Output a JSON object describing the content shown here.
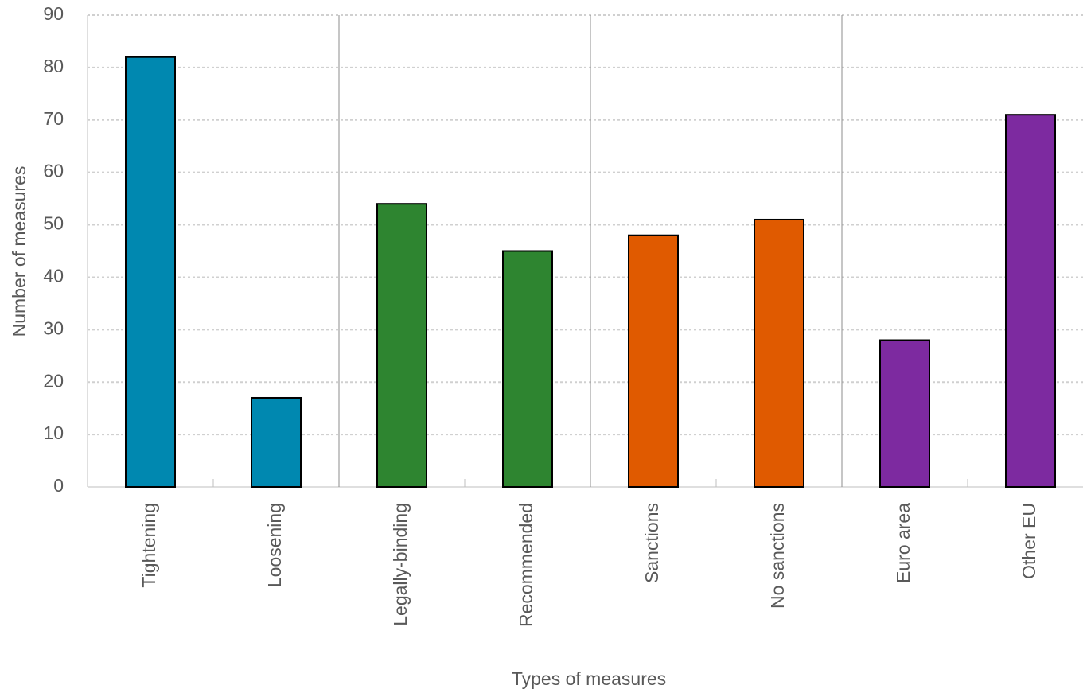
{
  "chart_data": {
    "type": "bar",
    "x_label": "Types of measures",
    "y_label": "Number of measures",
    "categories": [
      "Tightening",
      "Loosening",
      "Legally-binding",
      "Recommended",
      "Sanctions",
      "No sanctions",
      "Euro area",
      "Other EU"
    ],
    "values": [
      82,
      17,
      54,
      45,
      48,
      51,
      28,
      71
    ],
    "colors": [
      "#0088b0",
      "#0088b0",
      "#2e8530",
      "#2e8530",
      "#e05a00",
      "#e05a00",
      "#7d2aa0",
      "#7d2aa0"
    ],
    "ylim": [
      0,
      90
    ],
    "yticks": [
      0,
      10,
      20,
      30,
      40,
      50,
      60,
      70,
      80,
      90
    ],
    "grid": true
  }
}
